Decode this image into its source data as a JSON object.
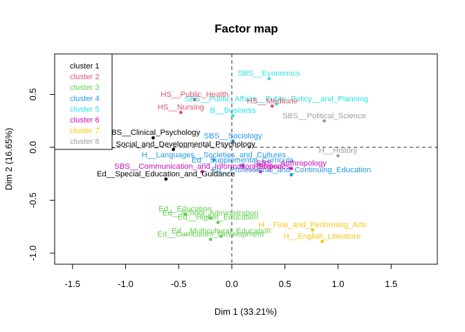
{
  "chart_data": {
    "type": "scatter",
    "title": "Factor map",
    "xlabel": "Dim 1 (33.21%)",
    "ylabel": "Dim 2 (16.65%)",
    "xlim": [
      -1.7,
      1.95
    ],
    "ylim": [
      -1.1,
      0.88
    ],
    "xticks": [
      "-1.5",
      "-1.0",
      "-0.5",
      "0.0",
      "0.5",
      "1.0",
      "1.5"
    ],
    "yticks": [
      "-1.0",
      "-0.5",
      "0.0",
      "0.5"
    ],
    "legend_position": "top-left",
    "legend": [
      {
        "name": "cluster 1",
        "color": "#000000"
      },
      {
        "name": "cluster 2",
        "color": "#DF536B"
      },
      {
        "name": "cluster 3",
        "color": "#61D04F"
      },
      {
        "name": "cluster 4",
        "color": "#2297E6"
      },
      {
        "name": "cluster 5",
        "color": "#28E2E5"
      },
      {
        "name": "cluster 6",
        "color": "#CD0BBC"
      },
      {
        "name": "cluster 7",
        "color": "#F5C710"
      },
      {
        "name": "cluster 8",
        "color": "#9E9E9E"
      }
    ],
    "points": [
      {
        "label": "SBS__Economics",
        "x": 0.35,
        "y": 0.65,
        "cluster": 5
      },
      {
        "label": "SBS__Public_Affairs__Public_Policy__and_Planning",
        "x": 0.42,
        "y": 0.41,
        "cluster": 5
      },
      {
        "label": "B__Business",
        "x": 0.01,
        "y": 0.3,
        "cluster": 5
      },
      {
        "label": "HS__Public_Health",
        "x": -0.35,
        "y": 0.45,
        "cluster": 2
      },
      {
        "label": "HS__Medicine",
        "x": 0.38,
        "y": 0.39,
        "cluster": 2
      },
      {
        "label": "HS__Nursing",
        "x": -0.48,
        "y": 0.33,
        "cluster": 2
      },
      {
        "label": "SBS__Political_Science",
        "x": 0.87,
        "y": 0.25,
        "cluster": 8
      },
      {
        "label": "H__History",
        "x": 1.0,
        "y": -0.08,
        "cluster": 8
      },
      {
        "label": "SBS__Clinical_Psychology",
        "x": -0.74,
        "y": 0.09,
        "cluster": 1
      },
      {
        "label": "SBS__Social_and_Developmental_Psychology",
        "x": -0.55,
        "y": -0.02,
        "cluster": 1
      },
      {
        "label": "Ed__Special_Education_and_Guidance",
        "x": -0.62,
        "y": -0.3,
        "cluster": 1
      },
      {
        "label": "SBS__Sociology",
        "x": 0.01,
        "y": 0.06,
        "cluster": 4
      },
      {
        "label": "H__Languages__Societies_and_Cultures",
        "x": -0.17,
        "y": -0.12,
        "cluster": 4
      },
      {
        "label": "Ed__Supplemental_Curricula",
        "x": 0.1,
        "y": -0.17,
        "cluster": 4
      },
      {
        "label": "Ed__Professional_and_Continuing_Education",
        "x": 0.56,
        "y": -0.26,
        "cluster": 4
      },
      {
        "label": "H__Religion",
        "x": 0.27,
        "y": -0.23,
        "cluster": 6
      },
      {
        "label": "SBS__Anthropology",
        "x": 0.56,
        "y": -0.2,
        "cluster": 6
      },
      {
        "label": "SBS__Communication_and_Information_Sciences",
        "x": -0.28,
        "y": -0.23,
        "cluster": 6
      },
      {
        "label": "Ed__Education",
        "x": -0.44,
        "y": -0.63,
        "cluster": 3
      },
      {
        "label": "Ed__School_Administration",
        "x": -0.2,
        "y": -0.67,
        "cluster": 3
      },
      {
        "label": "Ed__Higher_Education",
        "x": -0.13,
        "y": -0.71,
        "cluster": 3
      },
      {
        "label": "Ed__Multicultural_Education",
        "x": -0.1,
        "y": -0.84,
        "cluster": 3
      },
      {
        "label": "Ed__Curriculum_Development",
        "x": -0.2,
        "y": -0.87,
        "cluster": 3
      },
      {
        "label": "H__Fine_and_Performing_Arts",
        "x": 0.76,
        "y": -0.78,
        "cluster": 7
      },
      {
        "label": "H__English_Literature",
        "x": 0.85,
        "y": -0.89,
        "cluster": 7
      }
    ]
  }
}
